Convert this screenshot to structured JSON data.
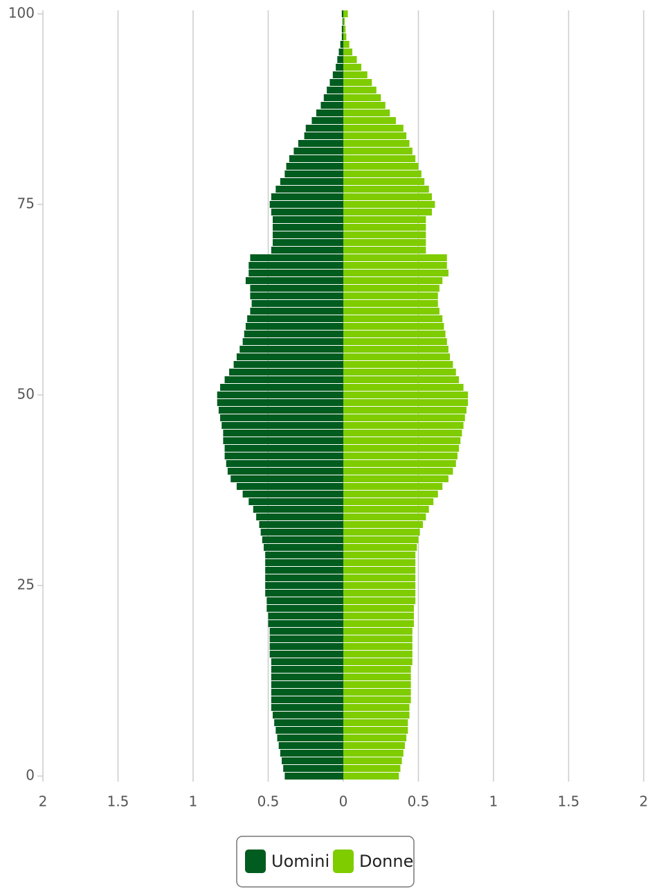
{
  "chart_data": {
    "type": "pyramid",
    "xlim": [
      -2,
      2
    ],
    "xticks": [
      {
        "value": -2,
        "label": "2"
      },
      {
        "value": -1.5,
        "label": "1.5"
      },
      {
        "value": -1,
        "label": "1"
      },
      {
        "value": -0.5,
        "label": "0.5"
      },
      0,
      0.5,
      1,
      1.5,
      2
    ],
    "ylim": [
      0,
      100
    ],
    "yticks": [
      0,
      25,
      50,
      75,
      100
    ],
    "grid": true,
    "legend": "bottom",
    "y": [
      0,
      1,
      2,
      3,
      4,
      5,
      6,
      7,
      8,
      9,
      10,
      11,
      12,
      13,
      14,
      15,
      16,
      17,
      18,
      19,
      20,
      21,
      22,
      23,
      24,
      25,
      26,
      27,
      28,
      29,
      30,
      31,
      32,
      33,
      34,
      35,
      36,
      37,
      38,
      39,
      40,
      41,
      42,
      43,
      44,
      45,
      46,
      47,
      48,
      49,
      50,
      51,
      52,
      53,
      54,
      55,
      56,
      57,
      58,
      59,
      60,
      61,
      62,
      63,
      64,
      65,
      66,
      67,
      68,
      69,
      70,
      71,
      72,
      73,
      74,
      75,
      76,
      77,
      78,
      79,
      80,
      81,
      82,
      83,
      84,
      85,
      86,
      87,
      88,
      89,
      90,
      91,
      92,
      93,
      94,
      95,
      96,
      97,
      98,
      99,
      100
    ],
    "series": [
      {
        "name": "Uomini",
        "color": "#005c1f",
        "values": [
          -0.39,
          -0.4,
          -0.41,
          -0.42,
          -0.43,
          -0.44,
          -0.45,
          -0.46,
          -0.47,
          -0.48,
          -0.48,
          -0.48,
          -0.48,
          -0.48,
          -0.48,
          -0.48,
          -0.49,
          -0.49,
          -0.49,
          -0.49,
          -0.5,
          -0.5,
          -0.51,
          -0.51,
          -0.52,
          -0.52,
          -0.52,
          -0.52,
          -0.52,
          -0.52,
          -0.53,
          -0.54,
          -0.55,
          -0.56,
          -0.58,
          -0.6,
          -0.63,
          -0.67,
          -0.71,
          -0.75,
          -0.77,
          -0.78,
          -0.79,
          -0.79,
          -0.8,
          -0.8,
          -0.81,
          -0.82,
          -0.83,
          -0.84,
          -0.84,
          -0.82,
          -0.79,
          -0.76,
          -0.73,
          -0.71,
          -0.69,
          -0.67,
          -0.66,
          -0.65,
          -0.64,
          -0.62,
          -0.61,
          -0.62,
          -0.62,
          -0.65,
          -0.63,
          -0.63,
          -0.62,
          -0.48,
          -0.47,
          -0.47,
          -0.47,
          -0.47,
          -0.48,
          -0.49,
          -0.48,
          -0.45,
          -0.42,
          -0.39,
          -0.38,
          -0.36,
          -0.33,
          -0.3,
          -0.26,
          -0.25,
          -0.21,
          -0.18,
          -0.15,
          -0.13,
          -0.11,
          -0.09,
          -0.07,
          -0.05,
          -0.04,
          -0.03,
          -0.02,
          -0.01,
          -0.01,
          -0.005,
          -0.01
        ]
      },
      {
        "name": "Donne",
        "color": "#7fcc00",
        "values": [
          0.37,
          0.38,
          0.39,
          0.4,
          0.41,
          0.42,
          0.43,
          0.43,
          0.44,
          0.44,
          0.45,
          0.45,
          0.45,
          0.45,
          0.45,
          0.46,
          0.46,
          0.46,
          0.46,
          0.46,
          0.47,
          0.47,
          0.47,
          0.48,
          0.48,
          0.48,
          0.48,
          0.48,
          0.48,
          0.48,
          0.49,
          0.5,
          0.51,
          0.53,
          0.55,
          0.57,
          0.6,
          0.63,
          0.66,
          0.7,
          0.73,
          0.75,
          0.76,
          0.77,
          0.78,
          0.79,
          0.8,
          0.81,
          0.82,
          0.83,
          0.83,
          0.8,
          0.77,
          0.75,
          0.73,
          0.71,
          0.7,
          0.69,
          0.68,
          0.67,
          0.66,
          0.64,
          0.63,
          0.63,
          0.64,
          0.66,
          0.7,
          0.69,
          0.69,
          0.55,
          0.55,
          0.55,
          0.55,
          0.55,
          0.59,
          0.61,
          0.59,
          0.57,
          0.54,
          0.52,
          0.5,
          0.48,
          0.46,
          0.44,
          0.42,
          0.4,
          0.35,
          0.31,
          0.28,
          0.25,
          0.22,
          0.19,
          0.16,
          0.12,
          0.09,
          0.06,
          0.04,
          0.02,
          0.015,
          0.01,
          0.03
        ]
      }
    ]
  }
}
